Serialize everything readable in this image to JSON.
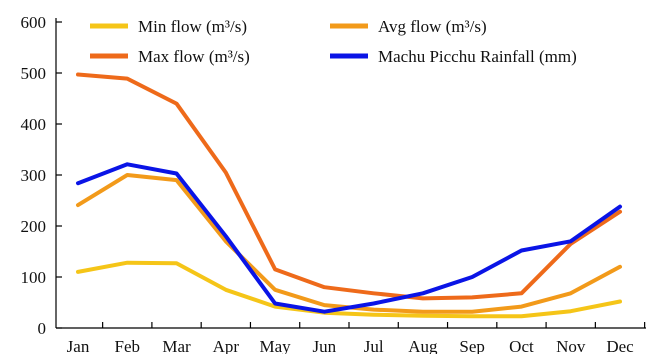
{
  "chart_data": {
    "type": "line",
    "title": "",
    "xlabel": "",
    "ylabel": "",
    "ylim": [
      0,
      600
    ],
    "yticks": [
      0,
      100,
      200,
      300,
      400,
      500,
      600
    ],
    "categories": [
      "Jan",
      "Feb",
      "Mar",
      "Apr",
      "May",
      "Jun",
      "Jul",
      "Aug",
      "Sep",
      "Oct",
      "Nov",
      "Dec"
    ],
    "grid": false,
    "legend_position": "top",
    "series": [
      {
        "name": "Min flow (m³/s)",
        "color": "#F5C518",
        "values": [
          110,
          128,
          127,
          75,
          42,
          30,
          26,
          24,
          23,
          23,
          33,
          52
        ]
      },
      {
        "name": "Avg flow (m³/s)",
        "color": "#F29A1A",
        "values": [
          241,
          300,
          290,
          170,
          75,
          45,
          36,
          32,
          32,
          42,
          68,
          120
        ]
      },
      {
        "name": "Max flow (m³/s)",
        "color": "#EE6A1A",
        "values": [
          497,
          489,
          440,
          305,
          115,
          80,
          68,
          58,
          60,
          68,
          165,
          228
        ]
      },
      {
        "name": "Machu Picchu Rainfall (mm)",
        "color": "#0A14E6",
        "values": [
          284,
          321,
          303,
          180,
          48,
          32,
          48,
          68,
          100,
          152,
          170,
          238
        ]
      }
    ]
  }
}
